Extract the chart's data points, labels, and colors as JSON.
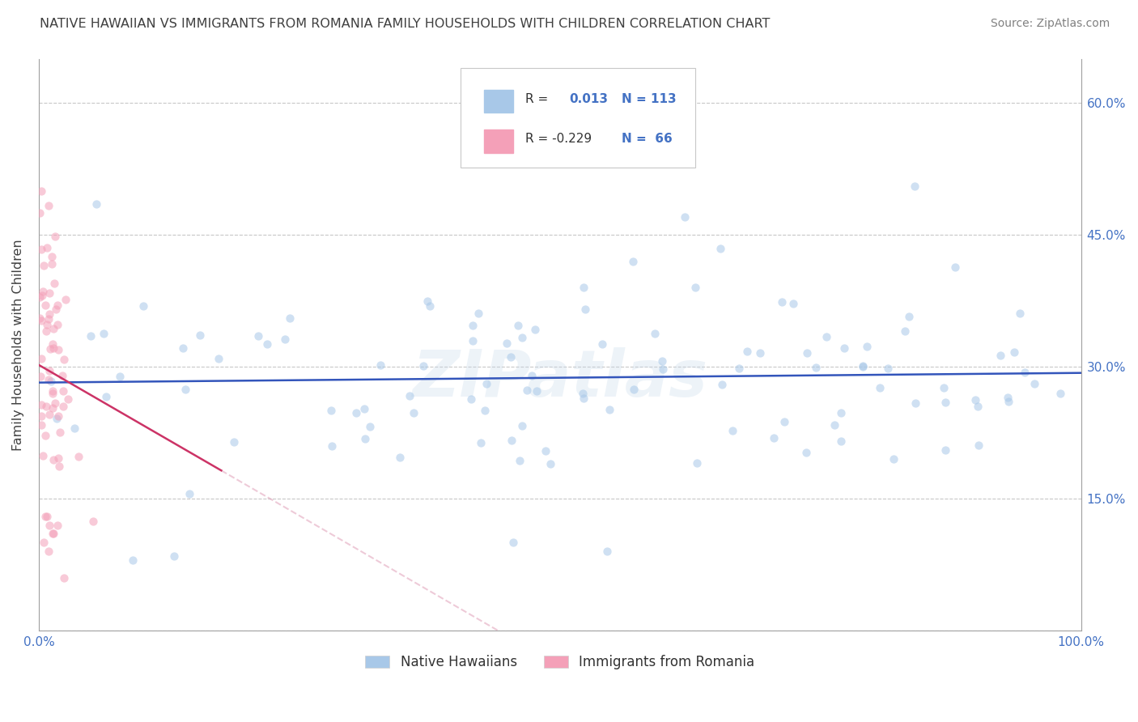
{
  "title": "NATIVE HAWAIIAN VS IMMIGRANTS FROM ROMANIA FAMILY HOUSEHOLDS WITH CHILDREN CORRELATION CHART",
  "source": "Source: ZipAtlas.com",
  "ylabel": "Family Households with Children",
  "xlim": [
    0.0,
    1.0
  ],
  "ylim": [
    0.0,
    0.65
  ],
  "x_ticks": [
    0.0,
    0.1,
    0.2,
    0.3,
    0.4,
    0.5,
    0.6,
    0.7,
    0.8,
    0.9,
    1.0
  ],
  "y_ticks": [
    0.0,
    0.15,
    0.3,
    0.45,
    0.6
  ],
  "y_tick_labels_right": [
    "",
    "15.0%",
    "30.0%",
    "45.0%",
    "60.0%"
  ],
  "legend_entries": [
    {
      "label": "Native Hawaiians",
      "color": "#a8c8e8",
      "R": "0.013",
      "N": "113"
    },
    {
      "label": "Immigrants from Romania",
      "color": "#f4a0b0",
      "R": "-0.229",
      "N": "66"
    }
  ],
  "watermark": "ZIPatlas",
  "background_color": "#ffffff",
  "blue_color": "#a8c8e8",
  "blue_line_color": "#3355bb",
  "pink_color": "#f4a0b8",
  "pink_line_color": "#cc3366",
  "scatter_size": 55,
  "scatter_alpha": 0.55
}
